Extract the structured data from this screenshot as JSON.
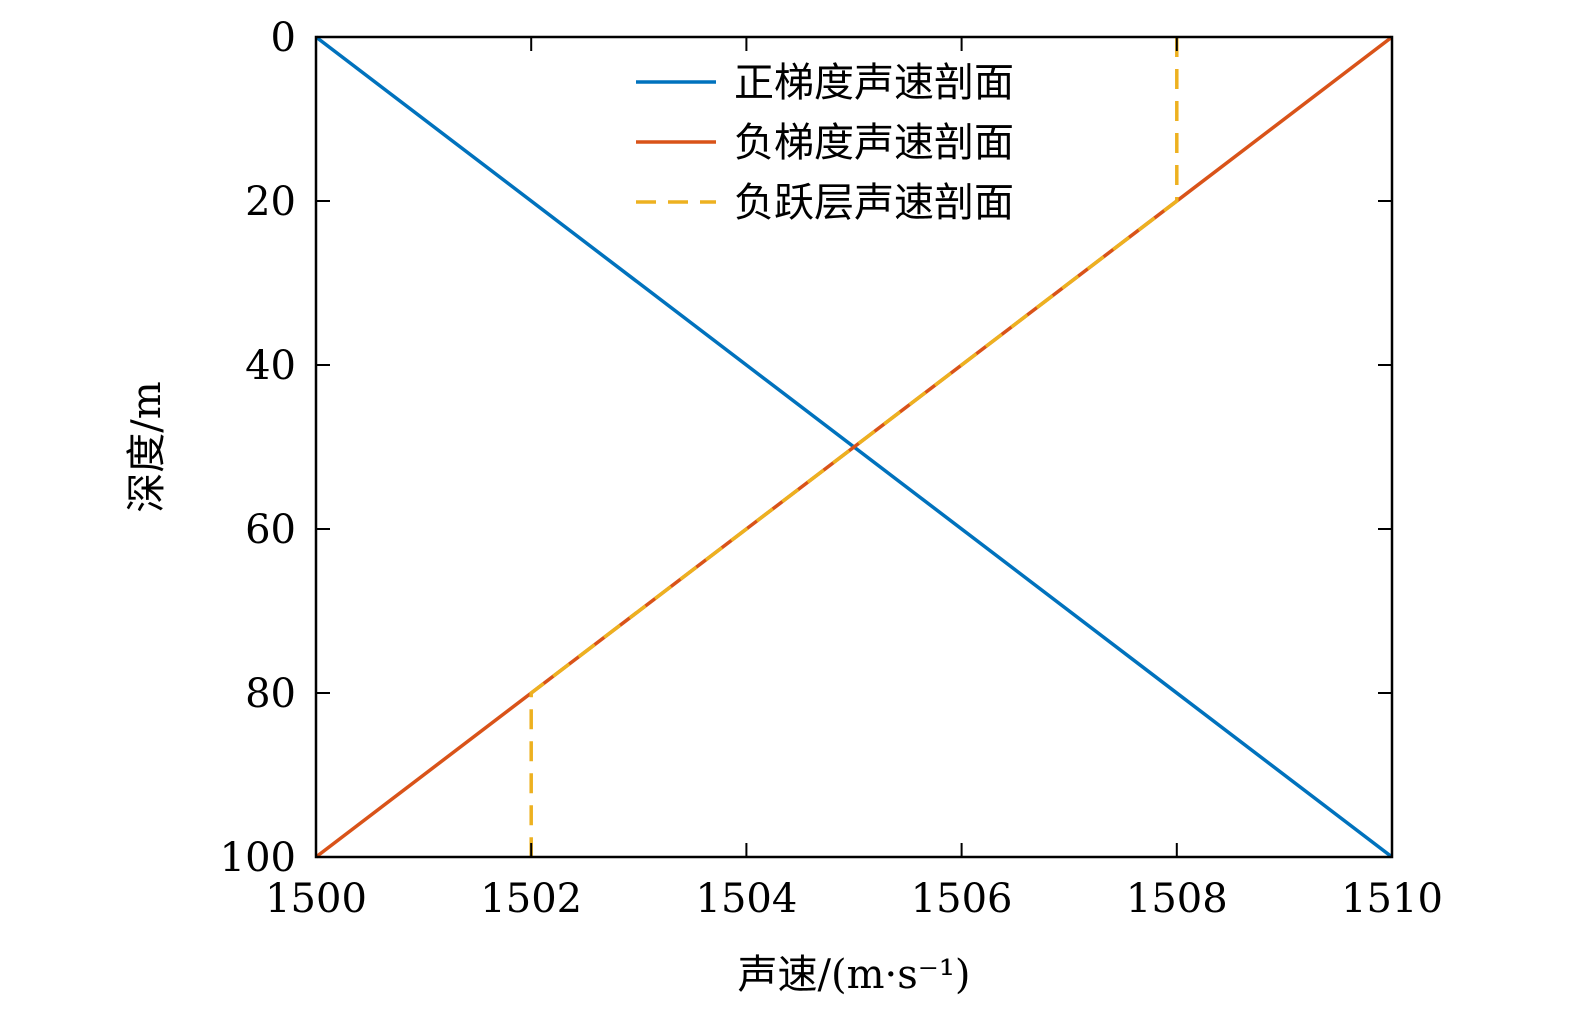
{
  "chart_data": {
    "type": "line",
    "xlabel": "声速/(m·s⁻¹)",
    "ylabel": "深度/m",
    "xlim": [
      1500,
      1510
    ],
    "ylim": [
      0,
      100
    ],
    "y_inverted": true,
    "x_ticks": [
      1500,
      1502,
      1504,
      1506,
      1508,
      1510
    ],
    "y_ticks": [
      0,
      20,
      40,
      60,
      80,
      100
    ],
    "grid": false,
    "legend_position": "top-center",
    "series": [
      {
        "name": "正梯度声速剖面",
        "color": "#0072BD",
        "style": "solid",
        "x": [
          1500,
          1510
        ],
        "y": [
          0,
          100
        ]
      },
      {
        "name": "负梯度声速剖面",
        "color": "#D95319",
        "style": "solid",
        "x": [
          1510,
          1500
        ],
        "y": [
          0,
          100
        ]
      },
      {
        "name": "负跃层声速剖面",
        "color": "#EDB120",
        "style": "dashed",
        "x": [
          1508,
          1508,
          1502,
          1502
        ],
        "y": [
          0,
          20,
          80,
          100
        ]
      }
    ]
  }
}
